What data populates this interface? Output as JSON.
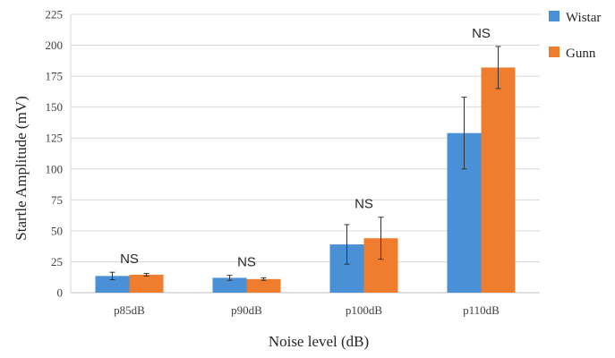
{
  "chart_data": {
    "type": "bar",
    "title": "",
    "xlabel": "Noise level (dB)",
    "ylabel": "Startle Amplitude (mV)",
    "ylim": [
      0,
      225
    ],
    "yticks": [
      0,
      25,
      50,
      75,
      100,
      125,
      150,
      175,
      200,
      225
    ],
    "categories": [
      "p85dB",
      "p90dB",
      "p100dB",
      "p110dB"
    ],
    "series": [
      {
        "name": "Wistar",
        "color": "#4a90d6",
        "values": [
          13.5,
          12,
          39,
          129
        ],
        "errors": [
          3,
          2,
          16,
          29
        ]
      },
      {
        "name": "Gunn",
        "color": "#ef7d2d",
        "values": [
          14.5,
          11,
          44,
          182
        ],
        "errors": [
          1,
          1,
          17,
          17
        ]
      }
    ],
    "annotations": [
      "NS",
      "NS",
      "NS",
      "NS"
    ],
    "grid": true,
    "legend_position": "right"
  }
}
